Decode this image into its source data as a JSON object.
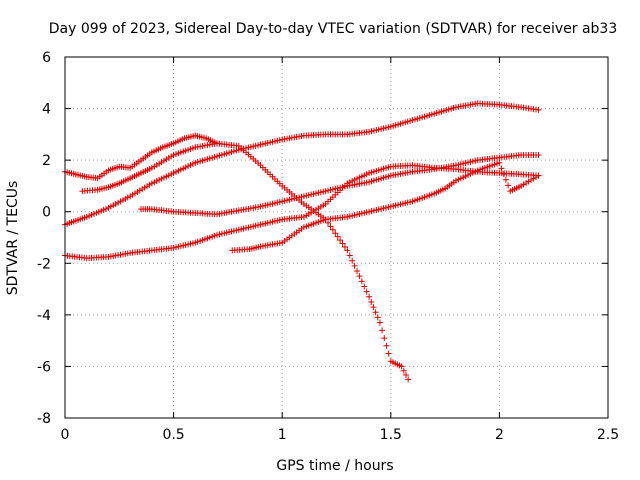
{
  "chart_data": {
    "type": "scatter",
    "title": "Day 099 of 2023, Sidereal Day-to-day VTEC variation (SDTVAR) for receiver ab33",
    "xlabel": "GPS time / hours",
    "ylabel": "SDTVAR / TECUs",
    "xlim": [
      0,
      2.5
    ],
    "ylim": [
      -8,
      6
    ],
    "xticks": [
      0,
      0.5,
      1,
      1.5,
      2,
      2.5
    ],
    "xtick_labels": [
      "0",
      "0.5",
      "1",
      "1.5",
      "2",
      "2.5"
    ],
    "yticks": [
      -8,
      -6,
      -4,
      -2,
      0,
      2,
      4,
      6
    ],
    "ytick_labels": [
      "-8",
      "-6",
      "-4",
      "-2",
      "0",
      "2",
      "4",
      "6"
    ],
    "grid": true,
    "marker": "+",
    "marker_color": "#e60000",
    "series": [
      {
        "name": "trace-1",
        "x": [
          0,
          0.05,
          0.1,
          0.2,
          0.3,
          0.4,
          0.5,
          0.6,
          0.7,
          0.8,
          0.9,
          1.0,
          1.1,
          1.2,
          1.3,
          1.4,
          1.5,
          1.6,
          1.7,
          1.8,
          1.9,
          2.0,
          2.1,
          2.18
        ],
        "y": [
          -0.5,
          -0.35,
          -0.2,
          0.15,
          0.6,
          1.1,
          1.5,
          1.9,
          2.15,
          2.4,
          2.6,
          2.8,
          2.95,
          3.0,
          3.0,
          3.1,
          3.3,
          3.55,
          3.8,
          4.05,
          4.2,
          4.15,
          4.05,
          3.95
        ]
      },
      {
        "name": "trace-2",
        "x": [
          0,
          0.1,
          0.2,
          0.3,
          0.4,
          0.5,
          0.6,
          0.7,
          0.8,
          0.9,
          1.0,
          1.1,
          1.2,
          1.3,
          1.4,
          1.5,
          1.6,
          1.7,
          1.8,
          1.9,
          2.0,
          2.1,
          2.18
        ],
        "y": [
          -1.7,
          -1.8,
          -1.75,
          -1.6,
          -1.5,
          -1.4,
          -1.2,
          -0.9,
          -0.7,
          -0.5,
          -0.3,
          -0.2,
          0.3,
          1.1,
          1.5,
          1.75,
          1.8,
          1.7,
          1.65,
          1.55,
          1.5,
          1.45,
          1.4
        ]
      },
      {
        "name": "trace-3",
        "x": [
          0.35,
          0.4,
          0.5,
          0.6,
          0.7,
          0.8,
          0.9,
          1.0,
          1.1,
          1.2,
          1.3,
          1.4,
          1.5,
          1.6,
          1.7,
          1.8,
          1.9,
          2.0,
          2.1,
          2.18
        ],
        "y": [
          0.1,
          0.1,
          0.0,
          -0.05,
          -0.1,
          0.05,
          0.2,
          0.4,
          0.6,
          0.8,
          1.0,
          1.15,
          1.4,
          1.55,
          1.65,
          1.8,
          2.0,
          2.1,
          2.2,
          2.2
        ]
      },
      {
        "name": "trace-4",
        "x": [
          0.08,
          0.15,
          0.2,
          0.25,
          0.3,
          0.35,
          0.4,
          0.5,
          0.6,
          0.7,
          0.8,
          0.9,
          1.0,
          1.1,
          1.2,
          1.3,
          1.4,
          1.45,
          1.5,
          1.55,
          1.58
        ],
        "y": [
          0.8,
          0.85,
          0.95,
          1.1,
          1.3,
          1.5,
          1.7,
          2.2,
          2.5,
          2.65,
          2.55,
          1.8,
          1.0,
          0.3,
          -0.3,
          -1.5,
          -3.3,
          -4.3,
          -5.8,
          -6.0,
          -6.5
        ]
      },
      {
        "name": "trace-5",
        "x": [
          0,
          0.05,
          0.1,
          0.15,
          0.2,
          0.25,
          0.3,
          0.35,
          0.4,
          0.45,
          0.5,
          0.55,
          0.6,
          0.65,
          0.7
        ],
        "y": [
          1.55,
          1.45,
          1.35,
          1.3,
          1.6,
          1.75,
          1.7,
          2.0,
          2.3,
          2.5,
          2.65,
          2.85,
          2.95,
          2.85,
          2.65
        ]
      },
      {
        "name": "trace-6",
        "x": [
          0.77,
          0.85,
          0.9,
          1.0,
          1.1,
          1.2,
          1.3,
          1.4,
          1.5,
          1.6,
          1.7,
          1.75,
          1.8,
          1.9,
          2.0,
          2.05,
          2.1,
          2.18
        ],
        "y": [
          -1.5,
          -1.45,
          -1.35,
          -1.2,
          -0.6,
          -0.3,
          -0.2,
          0.0,
          0.2,
          0.4,
          0.7,
          0.9,
          1.2,
          1.6,
          1.9,
          0.8,
          1.0,
          1.4
        ]
      }
    ]
  }
}
